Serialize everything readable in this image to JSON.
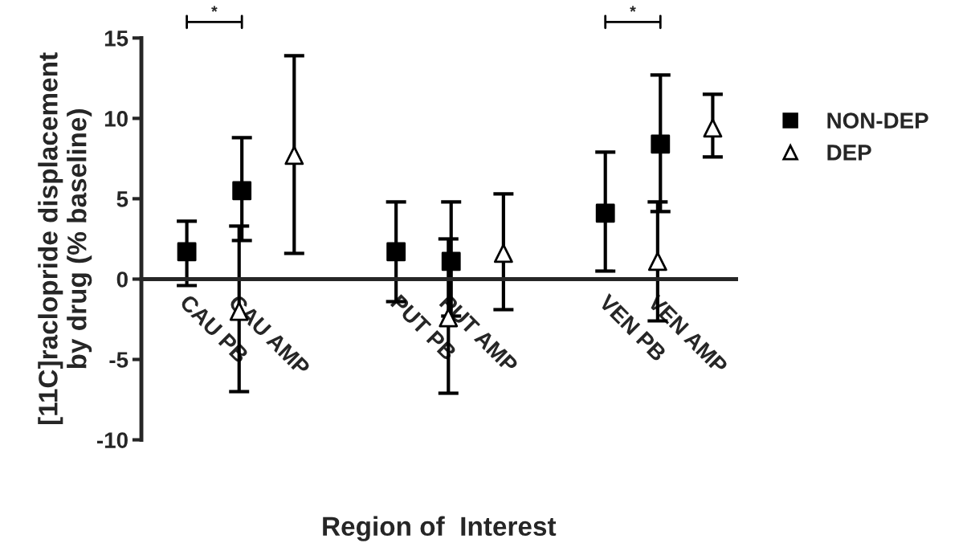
{
  "chart_data": {
    "type": "scatter",
    "xlabel": "Region of  Interest",
    "ylabel": "[11C]raclopride displacement\nby drug (% baseline)",
    "categories": [
      "CAU PB",
      "CAU AMP",
      "PUT PB",
      "PUT AMP",
      "VEN PB",
      "VEN AMP"
    ],
    "series": [
      {
        "name": "NON-DEP",
        "color": "#000000",
        "marker": "square",
        "values": [
          1.7,
          5.5,
          1.7,
          1.1,
          4.1,
          8.4
        ],
        "errors": [
          [
            -0.4,
            3.6
          ],
          [
            2.4,
            8.8
          ],
          [
            -1.4,
            4.8
          ],
          [
            -2.3,
            4.8
          ],
          [
            0.5,
            7.9
          ],
          [
            4.2,
            12.7
          ]
        ]
      },
      {
        "name": "DEP",
        "color": "#000000",
        "marker": "triangle",
        "values": [
          -2.0,
          7.7,
          -2.4,
          1.6,
          1.1,
          9.4
        ],
        "errors": [
          [
            -7.0,
            3.3
          ],
          [
            1.6,
            13.9
          ],
          [
            -7.1,
            2.5
          ],
          [
            -1.9,
            5.3
          ],
          [
            -2.6,
            4.8
          ],
          [
            7.6,
            11.5
          ]
        ]
      }
    ],
    "ylim": [
      -10,
      15
    ],
    "yticks": [
      -10,
      -5,
      0,
      5,
      10,
      15
    ],
    "legend": "right",
    "grid": false,
    "annotations": [
      "*",
      "*"
    ]
  }
}
